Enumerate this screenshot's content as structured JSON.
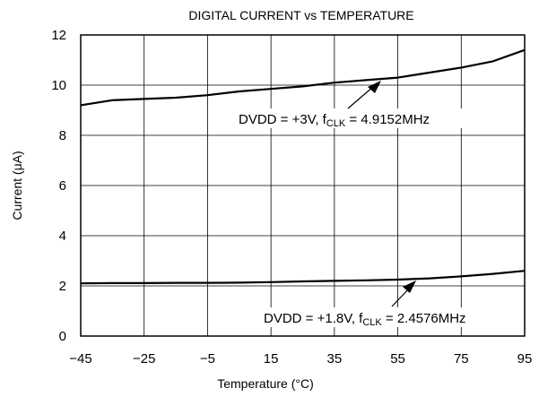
{
  "chart_data": {
    "type": "line",
    "title": "DIGITAL CURRENT vs TEMPERATURE",
    "xlabel": "Temperature (°C)",
    "ylabel": "Current (μA)",
    "xlim": [
      -45,
      95
    ],
    "ylim": [
      0,
      12
    ],
    "xticks": [
      "−45",
      "−25",
      "−5",
      "15",
      "35",
      "55",
      "75",
      "95"
    ],
    "yticks": [
      "0",
      "2",
      "4",
      "6",
      "8",
      "10",
      "12"
    ],
    "grid": true,
    "series": [
      {
        "annotation": {
          "prefix": "DVDD = +3V, f",
          "subscript": "CLK",
          "suffix": " = 4.9152MHz"
        },
        "x": [
          -45,
          -35,
          -25,
          -15,
          -5,
          5,
          15,
          25,
          35,
          45,
          55,
          65,
          75,
          85,
          95
        ],
        "y": [
          9.2,
          9.4,
          9.45,
          9.5,
          9.6,
          9.75,
          9.85,
          9.95,
          10.1,
          10.2,
          10.3,
          10.5,
          10.7,
          10.95,
          11.4
        ]
      },
      {
        "annotation": {
          "prefix": "DVDD = +1.8V, f",
          "subscript": "CLK",
          "suffix": " = 2.4576MHz"
        },
        "x": [
          -45,
          -35,
          -25,
          -15,
          -5,
          5,
          15,
          25,
          35,
          45,
          55,
          65,
          75,
          85,
          95
        ],
        "y": [
          2.1,
          2.11,
          2.11,
          2.12,
          2.12,
          2.13,
          2.15,
          2.18,
          2.2,
          2.22,
          2.25,
          2.3,
          2.38,
          2.48,
          2.6
        ]
      }
    ]
  }
}
